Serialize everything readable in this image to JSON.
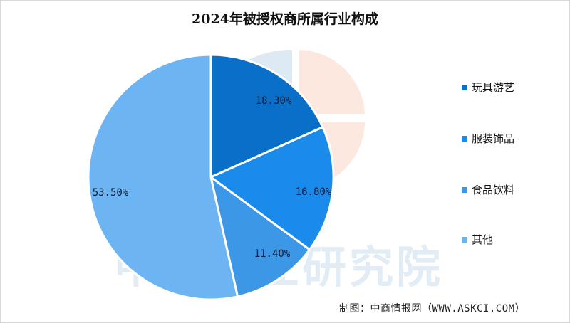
{
  "chart_data": {
    "type": "pie",
    "title": "2024年被授权商所属行业构成",
    "categories": [
      "玩具游艺",
      "服装饰品",
      "食品饮料",
      "其他"
    ],
    "values": [
      18.3,
      16.8,
      11.4,
      53.5
    ],
    "value_labels": [
      "18.30%",
      "16.80%",
      "11.40%",
      "53.50%"
    ],
    "colors": [
      "#0A6FC9",
      "#1A8BEA",
      "#3C97E6",
      "#6DB5F2"
    ],
    "start_angle": "12 o'clock",
    "direction": "clockwise",
    "legend_position": "right"
  },
  "title": "2024年被授权商所属行业构成",
  "legend": [
    {
      "label": "玩具游艺",
      "color": "#0A6FC9"
    },
    {
      "label": "服装饰品",
      "color": "#1A8BEA"
    },
    {
      "label": "食品饮料",
      "color": "#3C97E6"
    },
    {
      "label": "其他",
      "color": "#6DB5F2"
    }
  ],
  "source": "制图：中商情报网（WWW.ASKCI.COM）",
  "watermark": "中商产业研究院"
}
